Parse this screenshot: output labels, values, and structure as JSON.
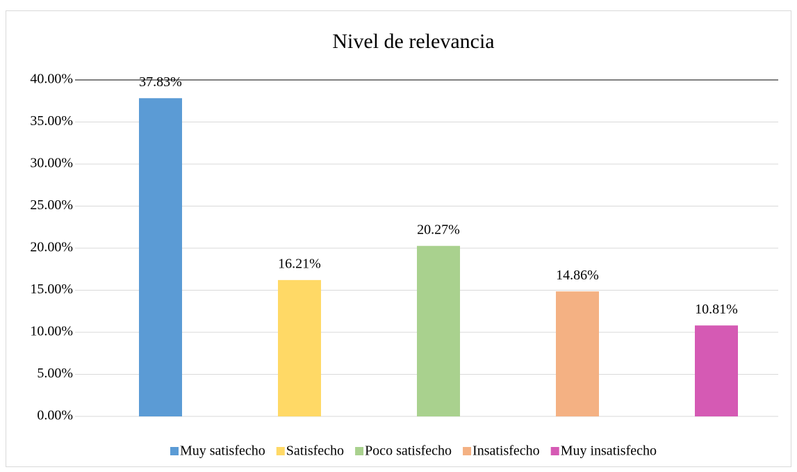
{
  "chart_data": {
    "type": "bar",
    "title": "Nivel de relevancia",
    "categories": [
      "Muy satisfecho",
      "Satisfecho",
      "Poco satisfecho",
      "Insatisfecho",
      "Muy insatisfecho"
    ],
    "values": [
      37.83,
      16.21,
      20.27,
      14.86,
      10.81
    ],
    "value_labels": [
      "37.83%",
      "16.21%",
      "20.27%",
      "14.86%",
      "10.81%"
    ],
    "colors": [
      "#5b9bd5",
      "#ffd966",
      "#a9d18e",
      "#f4b183",
      "#d55ab4"
    ],
    "ylim": [
      0,
      40
    ],
    "yticks": [
      {
        "value": 0,
        "label": "0.00%"
      },
      {
        "value": 5,
        "label": "5.00%"
      },
      {
        "value": 10,
        "label": "10.00%"
      },
      {
        "value": 15,
        "label": "15.00%"
      },
      {
        "value": 20,
        "label": "20.00%"
      },
      {
        "value": 25,
        "label": "25.00%"
      },
      {
        "value": 30,
        "label": "30.00%"
      },
      {
        "value": 35,
        "label": "35.00%"
      },
      {
        "value": 40,
        "label": "40.00%"
      }
    ],
    "grid": true,
    "legend": "bottom"
  }
}
